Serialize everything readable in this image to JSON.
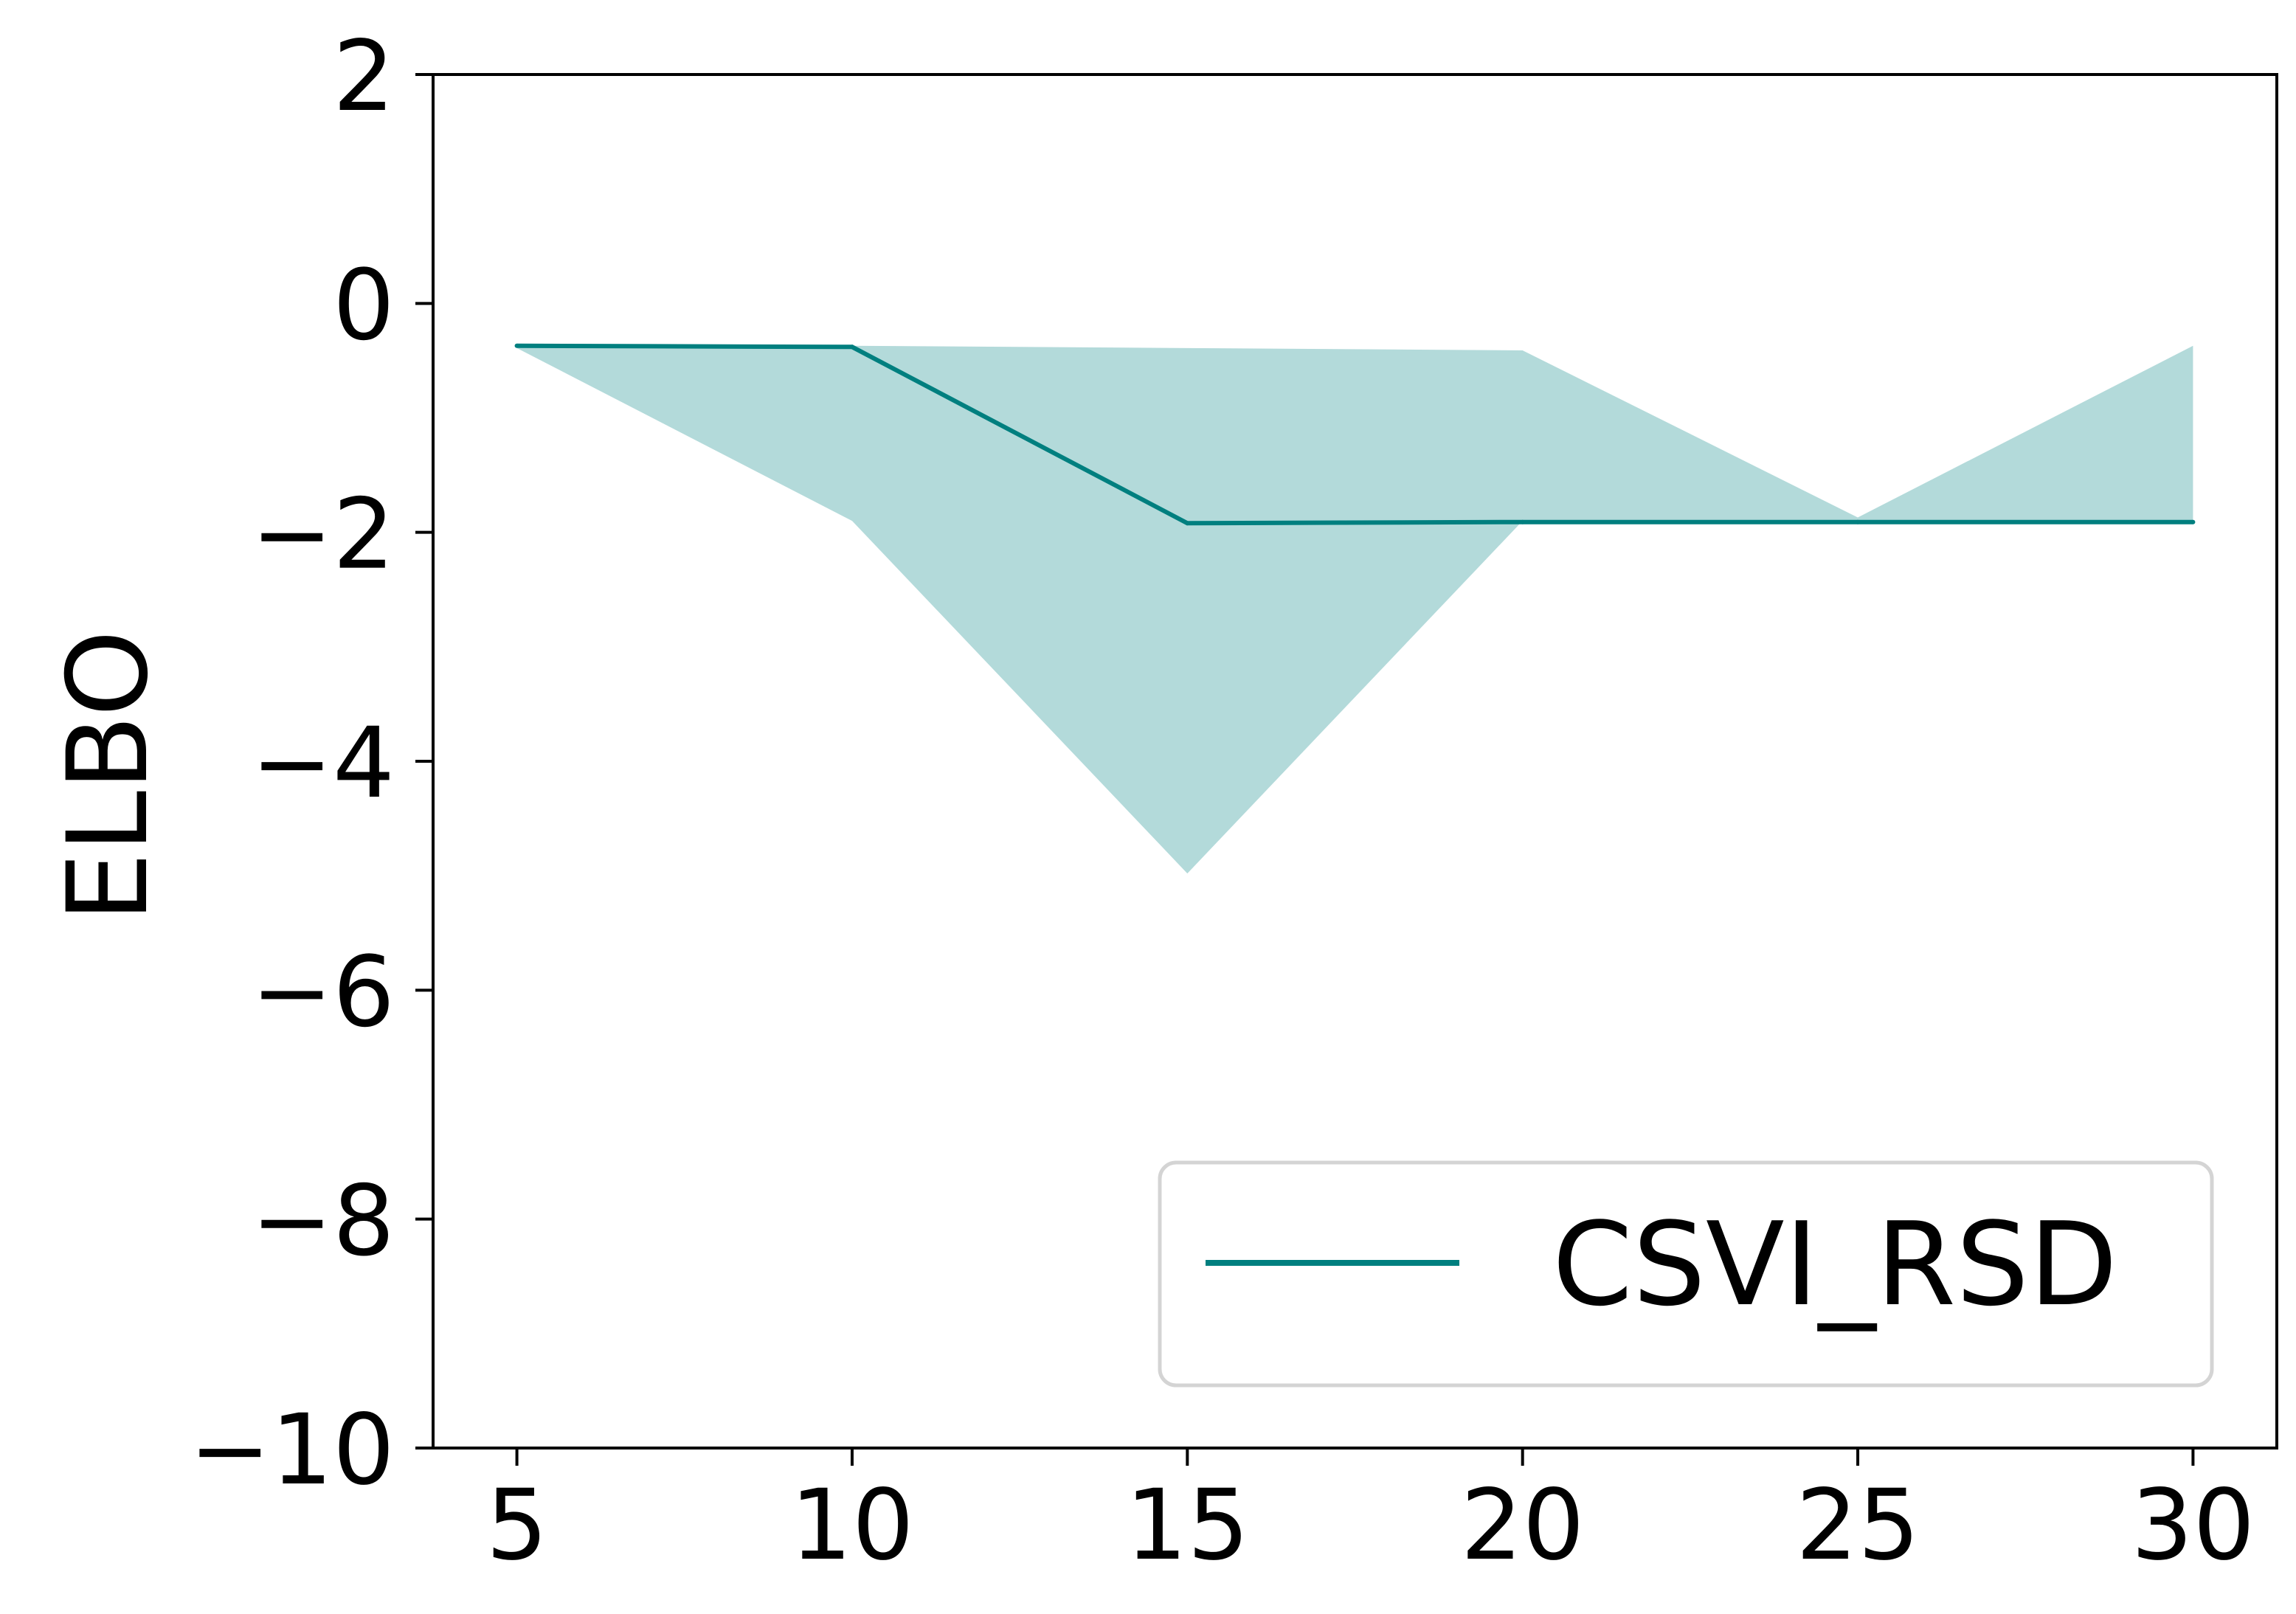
{
  "chart_data": {
    "type": "line",
    "title": "",
    "xlabel": "",
    "ylabel": "ELBO",
    "xlim": [
      3.75,
      31.25
    ],
    "ylim": [
      -10,
      2
    ],
    "x_ticks": [
      5,
      10,
      15,
      20,
      25,
      30
    ],
    "x_tick_labels": [
      "5",
      "10",
      "15",
      "20",
      "25",
      "30"
    ],
    "y_ticks": [
      -10,
      -8,
      -6,
      -4,
      -2,
      0,
      2
    ],
    "y_tick_labels": [
      "−10",
      "−8",
      "−6",
      "−4",
      "−2",
      "0",
      "2"
    ],
    "grid": false,
    "legend_position": "lower-right",
    "x": [
      5,
      10,
      15,
      20,
      25,
      30
    ],
    "series": [
      {
        "name": "CSVI_RSD",
        "values": [
          -0.37,
          -0.38,
          -1.92,
          -1.91,
          -1.91,
          -1.91
        ],
        "band_upper": [
          -0.37,
          -0.37,
          -0.39,
          -0.41,
          -1.87,
          -0.37
        ],
        "band_lower": [
          -0.39,
          -1.9,
          -4.98,
          -1.9,
          -1.9,
          -1.9
        ]
      }
    ],
    "colors": {
      "line": "#007f7f",
      "band": "#b3dada",
      "axis": "#000000",
      "legend_border": "#d4d4d4"
    }
  }
}
